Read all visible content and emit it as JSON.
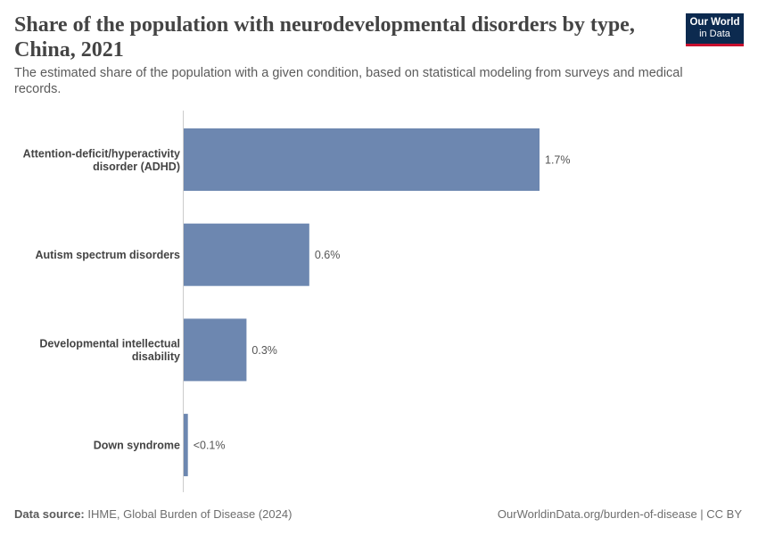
{
  "header": {
    "title": "Share of the population with neurodevelopmental disorders by type, China, 2021",
    "subtitle": "The estimated share of the population with a given condition, based on statistical modeling from surveys and medical records."
  },
  "logo": {
    "line1": "Our World",
    "line2": "in Data"
  },
  "footer": {
    "source_label": "Data source:",
    "source_text": "IHME, Global Burden of Disease (2024)",
    "url_license": "OurWorldinData.org/burden-of-disease | CC BY"
  },
  "colors": {
    "bar": "#6d87b0",
    "axis": "#cccccc"
  },
  "chart_data": {
    "type": "bar",
    "orientation": "horizontal",
    "categories": [
      [
        "Attention-deficit/hyperactivity",
        "disorder (ADHD)"
      ],
      [
        "Autism spectrum disorders"
      ],
      [
        "Developmental intellectual",
        "disability"
      ],
      [
        "Down syndrome"
      ]
    ],
    "values": [
      1.7,
      0.6,
      0.3,
      0.02
    ],
    "value_labels": [
      "1.7%",
      "0.6%",
      "0.3%",
      "<0.1%"
    ],
    "unit": "%",
    "xlim": [
      0,
      1.7
    ]
  }
}
